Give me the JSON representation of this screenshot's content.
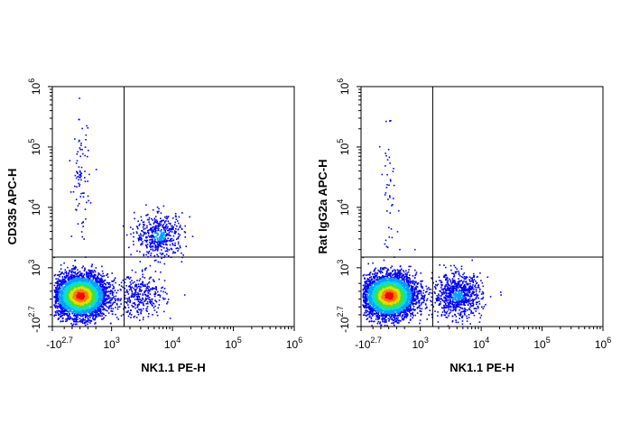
{
  "chart_data": [
    {
      "type": "scatter",
      "title": "",
      "xlabel": "NK1.1 PE-H",
      "ylabel": "CD335 APC-H",
      "x_scale": "biexponential",
      "y_scale": "biexponential",
      "xlim": [
        "-10^2.7",
        "10^6"
      ],
      "ylim": [
        "-10^2.7",
        "10^6"
      ],
      "x_ticks": [
        {
          "base": "-10",
          "exp": "2.7"
        },
        {
          "base": "10",
          "exp": "3"
        },
        {
          "base": "10",
          "exp": "4"
        },
        {
          "base": "10",
          "exp": "5"
        },
        {
          "base": "10",
          "exp": "6"
        }
      ],
      "y_ticks": [
        {
          "base": "-10",
          "exp": "2.7"
        },
        {
          "base": "10",
          "exp": "3"
        },
        {
          "base": "10",
          "exp": "4"
        },
        {
          "base": "10",
          "exp": "5"
        },
        {
          "base": "10",
          "exp": "6"
        }
      ],
      "quadrant_gate": {
        "x": 1600,
        "y": 1500
      },
      "populations": [
        {
          "x": 200,
          "y": 300,
          "relative_density": 1.0
        },
        {
          "x": 6000,
          "y": 3500,
          "relative_density": 0.12
        },
        {
          "x": 200,
          "y": 30000,
          "relative_density": 0.02
        },
        {
          "x": 3000,
          "y": 300,
          "relative_density": 0.08
        }
      ]
    },
    {
      "type": "scatter",
      "title": "",
      "xlabel": "NK1.1 PE-H",
      "ylabel": "Rat IgG2a APC-H",
      "x_scale": "biexponential",
      "y_scale": "biexponential",
      "xlim": [
        "-10^2.7",
        "10^6"
      ],
      "ylim": [
        "-10^2.7",
        "10^6"
      ],
      "x_ticks": [
        {
          "base": "-10",
          "exp": "2.7"
        },
        {
          "base": "10",
          "exp": "3"
        },
        {
          "base": "10",
          "exp": "4"
        },
        {
          "base": "10",
          "exp": "5"
        },
        {
          "base": "10",
          "exp": "6"
        }
      ],
      "y_ticks": [
        {
          "base": "-10",
          "exp": "2.7"
        },
        {
          "base": "10",
          "exp": "3"
        },
        {
          "base": "10",
          "exp": "4"
        },
        {
          "base": "10",
          "exp": "5"
        },
        {
          "base": "10",
          "exp": "6"
        }
      ],
      "quadrant_gate": {
        "x": 1600,
        "y": 1500
      },
      "populations": [
        {
          "x": 200,
          "y": 300,
          "relative_density": 1.0
        },
        {
          "x": 4000,
          "y": 300,
          "relative_density": 0.2
        },
        {
          "x": 200,
          "y": 20000,
          "relative_density": 0.01
        }
      ]
    }
  ],
  "colors": {
    "density_scale": [
      "#0000ff",
      "#00a0ff",
      "#00e0e0",
      "#40e040",
      "#e0e000",
      "#ff8000",
      "#ff0000"
    ],
    "axis": "#000000",
    "gate": "#000000"
  }
}
